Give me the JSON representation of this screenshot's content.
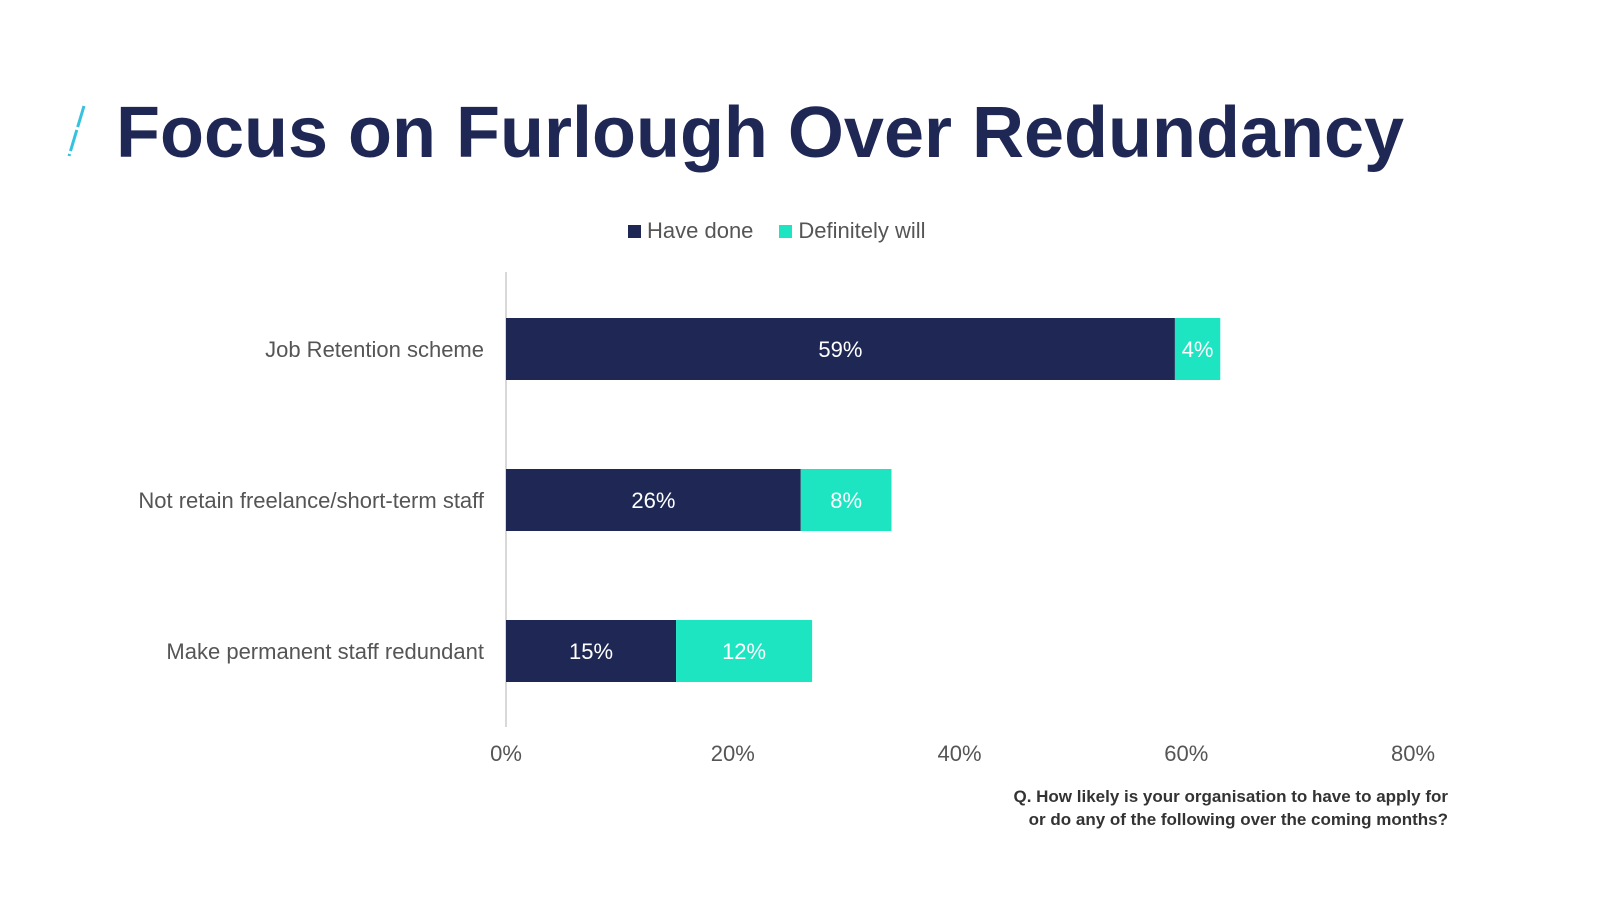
{
  "title": "Focus on Furlough Over Redundancy",
  "colors": {
    "title": "#1f2855",
    "have_done": "#1f2855",
    "definitely_will": "#1de5c2",
    "slash": "#35c2df",
    "axis_line": "#cccccc",
    "label_text": "#555555"
  },
  "legend": {
    "have_done": "Have done",
    "definitely_will": "Definitely will"
  },
  "note": {
    "line1": "Q. How likely is your organisation to have to apply for",
    "line2": "or do any of the following over the coming months?"
  },
  "chart_data": {
    "type": "bar",
    "orientation": "horizontal",
    "stacked": true,
    "categories": [
      "Job Retention scheme",
      "Not retain freelance/short-term staff",
      "Make permanent staff redundant"
    ],
    "series": [
      {
        "name": "Have done",
        "values": [
          59,
          26,
          15
        ],
        "labels": [
          "59%",
          "26%",
          "15%"
        ]
      },
      {
        "name": "Definitely will",
        "values": [
          4,
          8,
          12
        ],
        "labels": [
          "4%",
          "8%",
          "12%"
        ]
      }
    ],
    "xlim": [
      0,
      80
    ],
    "xticks": [
      "0%",
      "20%",
      "40%",
      "60%",
      "80%"
    ],
    "legend_position": "top",
    "grid": false
  }
}
